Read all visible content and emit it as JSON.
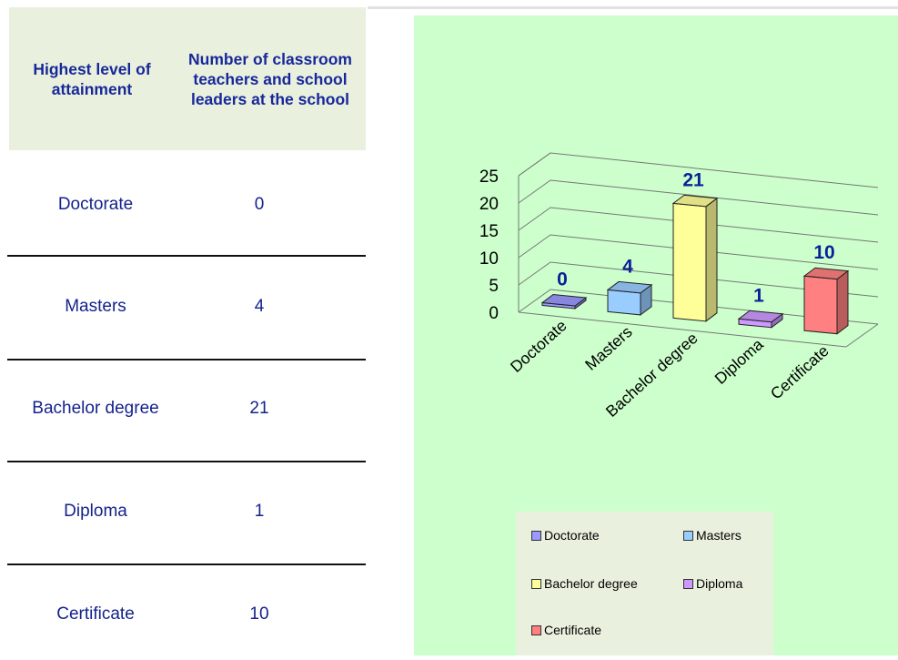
{
  "table": {
    "headers": [
      "Highest level of attainment",
      "Number of classroom teachers and school leaders at the school"
    ],
    "rows": [
      {
        "label": "Doctorate",
        "value": "0"
      },
      {
        "label": "Masters",
        "value": "4"
      },
      {
        "label": "Bachelor degree",
        "value": "21"
      },
      {
        "label": "Diploma",
        "value": "1"
      },
      {
        "label": "Certificate",
        "value": "10"
      }
    ]
  },
  "chart_data": {
    "type": "bar",
    "variant": "3d-column",
    "categories": [
      "Doctorate",
      "Masters",
      "Bachelor degree",
      "Diploma",
      "Certificate"
    ],
    "values": [
      0,
      4,
      21,
      1,
      10
    ],
    "data_labels": [
      "0",
      "4",
      "21",
      "1",
      "10"
    ],
    "colors": [
      "#9999ff",
      "#99ccff",
      "#ffff99",
      "#cc99ff",
      "#ff8080"
    ],
    "yticks": [
      "0",
      "5",
      "10",
      "15",
      "20",
      "25"
    ],
    "ylim": [
      0,
      25
    ],
    "grid": true,
    "title": "",
    "xlabel": "",
    "ylabel": "",
    "legend_position": "bottom",
    "legend": [
      "Doctorate",
      "Masters",
      "Bachelor degree",
      "Diploma",
      "Certificate"
    ],
    "background": "#ccffcc",
    "legend_background": "#eaf0de"
  }
}
